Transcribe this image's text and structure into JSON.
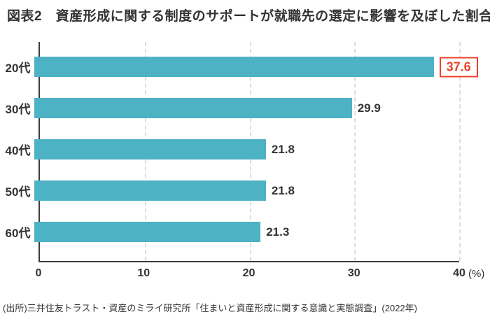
{
  "title": "図表2　資産形成に関する制度のサポートが就職先の選定に影響を及ぼした割合",
  "source": "(出所)三井住友トラスト・資産のミライ研究所「住まいと資産形成に関する意識と実態調査」(2022年)",
  "chart_data": {
    "type": "bar",
    "orientation": "horizontal",
    "title": "図表2　資産形成に関する制度のサポートが就職先の選定に影響を及ぼした割合",
    "categories": [
      "20代",
      "30代",
      "40代",
      "50代",
      "60代"
    ],
    "values": [
      37.6,
      29.9,
      21.8,
      21.8,
      21.3
    ],
    "value_labels": [
      "37.6",
      "29.9",
      "21.8",
      "21.8",
      "21.3"
    ],
    "highlight_index": 0,
    "xlabel": "",
    "ylabel": "",
    "xlim": [
      0,
      40
    ],
    "xticks": [
      0,
      10,
      20,
      30,
      40
    ],
    "x_unit": "(%)",
    "grid": "vertical-dashed",
    "legend": "none",
    "colors": {
      "bar": "#4db2c4",
      "highlight": "#e8432c",
      "text": "#333333",
      "grid": "#dedede",
      "axis": "#3c3c3c"
    }
  }
}
